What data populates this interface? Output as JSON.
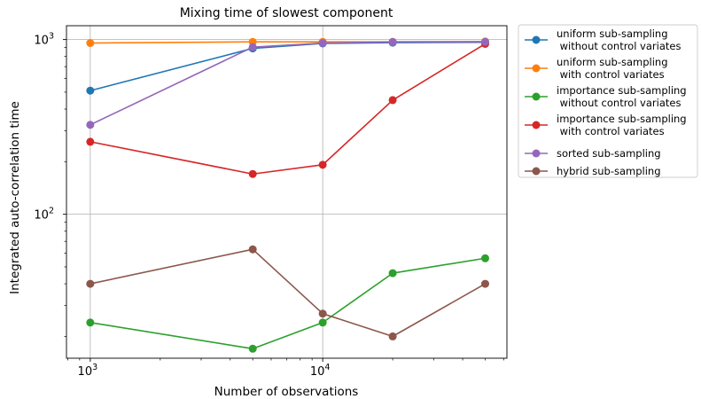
{
  "chart_data": {
    "type": "line",
    "title": "Mixing time of slowest component",
    "xlabel": "Number of observations",
    "ylabel": "Integrated auto-correlation time",
    "x_scale": "log",
    "y_scale": "log",
    "xlim": [
      790,
      62000
    ],
    "ylim": [
      15,
      1200
    ],
    "grid": true,
    "legend_position": "outside-right",
    "x_ticks": [
      {
        "value": 1000,
        "base": "10",
        "exp": "3"
      },
      {
        "value": 10000,
        "base": "10",
        "exp": "4"
      }
    ],
    "y_ticks": [
      {
        "value": 100,
        "base": "10",
        "exp": "2"
      },
      {
        "value": 1000,
        "base": "10",
        "exp": "3"
      }
    ],
    "x": [
      1000,
      5000,
      10000,
      20000,
      50000
    ],
    "series": [
      {
        "name": "uniform sub-sampling\n without control variates",
        "color": "#1f77b4",
        "values": [
          510,
          890,
          950,
          960,
          965
        ]
      },
      {
        "name": "uniform sub-sampling\n with control variates",
        "color": "#ff7f0e",
        "values": [
          955,
          970,
          970,
          970,
          975
        ]
      },
      {
        "name": "importance sub-sampling\n without control variates",
        "color": "#2ca02c",
        "values": [
          24,
          17,
          24,
          46,
          56
        ]
      },
      {
        "name": "importance sub-sampling\n with control variates",
        "color": "#d62728",
        "values": [
          260,
          170,
          192,
          450,
          945
        ]
      },
      {
        "name": "sorted sub-sampling",
        "color": "#9467bd",
        "values": [
          325,
          905,
          955,
          970,
          970
        ]
      },
      {
        "name": "hybrid sub-sampling",
        "color": "#8c564b",
        "values": [
          40,
          63,
          27,
          20,
          40
        ]
      }
    ]
  }
}
